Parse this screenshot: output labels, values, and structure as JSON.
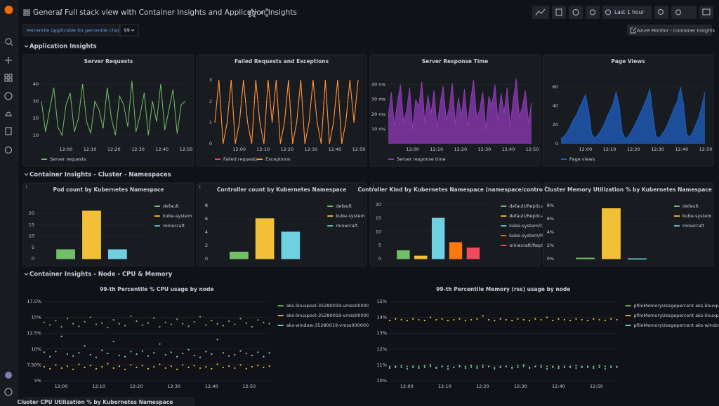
{
  "header": {
    "folder": "General",
    "title": "Full stack view with Container Insights and Application Insights",
    "time_range": "Last 1 hour"
  },
  "variables": {
    "label": "Percentile (applicable for percentile charts)",
    "value": "99",
    "link": "Azure Monitor - Container Insights"
  },
  "rows": [
    {
      "title": "Application Insights",
      "legend": "bottom",
      "panels": [
        {
          "title": "Server Requests",
          "type": "line",
          "ylim": [
            5,
            45
          ],
          "yticks": [
            10,
            20,
            30,
            40
          ],
          "xticks": [
            "12:00",
            "12:10",
            "12:20",
            "12:30",
            "12:40",
            "12:50"
          ],
          "series": [
            {
              "name": "Server requests",
              "color": "#73bf69",
              "values": [
                30,
                12,
                25,
                38,
                15,
                10,
                28,
                35,
                12,
                20,
                40,
                18,
                11,
                30,
                25,
                14,
                38,
                20,
                10,
                33,
                28,
                15,
                42,
                12,
                22,
                35,
                10,
                30,
                18,
                40,
                13,
                25,
                37,
                11,
                28,
                30
              ]
            }
          ]
        },
        {
          "title": "Failed Requests and Exceptions",
          "type": "line",
          "ylim": [
            0,
            3.2
          ],
          "yticks": [
            0,
            1,
            2,
            3
          ],
          "xticks": [
            "12:00",
            "12:10",
            "12:20",
            "12:30",
            "12:40",
            "12:50"
          ],
          "series": [
            {
              "name": "Failed requests",
              "color": "#f2495c",
              "values": [
                1,
                3,
                0,
                1,
                3,
                0,
                1,
                3,
                1,
                0,
                3,
                1,
                0,
                3,
                1,
                3,
                0,
                1,
                3,
                0,
                1,
                3,
                0,
                1,
                3,
                1,
                0,
                3,
                0,
                1,
                3,
                0,
                1,
                3,
                1,
                3
              ]
            },
            {
              "name": "Exceptions",
              "color": "#ff9830",
              "values": [
                1,
                3,
                0,
                1,
                3,
                0,
                1,
                3,
                1,
                0,
                3,
                1,
                0,
                3,
                1,
                3,
                0,
                1,
                3,
                0,
                1,
                3,
                0,
                1,
                3,
                1,
                0,
                3,
                0,
                1,
                3,
                0,
                1,
                3,
                1,
                3
              ]
            }
          ]
        },
        {
          "title": "Server Response Time",
          "type": "area",
          "ylim": [
            0,
            46
          ],
          "yticks": [
            {
              "value": 10,
              "label": "10 ms"
            },
            {
              "value": 20,
              "label": "20 ms"
            },
            {
              "value": 30,
              "label": "30 ms"
            },
            {
              "value": 40,
              "label": "40 ms"
            }
          ],
          "xticks": [
            "12:00",
            "12:10",
            "12:20",
            "12:30",
            "12:40",
            "12:50"
          ],
          "series": [
            {
              "name": "Server response time",
              "color": "#8f3bb8",
              "values": [
                18,
                35,
                12,
                28,
                40,
                15,
                22,
                38,
                10,
                30,
                25,
                42,
                14,
                33,
                20,
                36,
                11,
                27,
                39,
                16,
                24,
                41,
                13,
                31,
                19,
                37,
                12,
                29,
                43,
                17,
                23,
                35,
                10,
                32,
                26,
                40,
                15,
                34,
                21,
                38,
                12,
                30,
                44,
                18,
                25,
                36,
                14,
                28
              ]
            }
          ]
        },
        {
          "title": "Page Views",
          "type": "area",
          "ylim": [
            0,
            72
          ],
          "yticks": [
            0,
            20,
            40,
            60
          ],
          "xticks": [
            "12:00",
            "12:10",
            "12:20",
            "12:30",
            "12:40",
            "12:50"
          ],
          "series": [
            {
              "name": "Page views",
              "color": "#1f60c4",
              "values": [
                5,
                8,
                12,
                18,
                25,
                30,
                38,
                45,
                52,
                35,
                10,
                6,
                9,
                14,
                20,
                28,
                35,
                42,
                55,
                40,
                12,
                5,
                8,
                13,
                19,
                26,
                33,
                40,
                48,
                58,
                30,
                8,
                6,
                10,
                15,
                22,
                30,
                38,
                45,
                60,
                42,
                10,
                7,
                12,
                20,
                28,
                40,
                55
              ]
            }
          ]
        }
      ]
    },
    {
      "title": "Container Insights - Cluster - Namespaces",
      "legend": "right",
      "panels": [
        {
          "title": "Pod count by Kubernetes Namespace",
          "type": "bar",
          "ylim": [
            0,
            25
          ],
          "yticks": [
            0,
            5,
            10,
            15,
            20
          ],
          "categories": [
            "default",
            "kube-system",
            "minecraft"
          ],
          "values": [
            4,
            21,
            4
          ],
          "colors": [
            "#73bf69",
            "#f2c037",
            "#6ed0e0"
          ]
        },
        {
          "title": "Controller count by Kubernetes Namespace",
          "type": "bar",
          "ylim": [
            0,
            8.5
          ],
          "yticks": [
            0,
            2,
            4,
            6,
            8
          ],
          "categories": [
            "default",
            "kube-system",
            "minecraft"
          ],
          "values": [
            1,
            6,
            4
          ],
          "colors": [
            "#73bf69",
            "#f2c037",
            "#6ed0e0"
          ]
        },
        {
          "title": "Controller Kind by Kubernetes Namespace (namespace/controll...",
          "type": "bar",
          "ylim": [
            0,
            21
          ],
          "yticks": [
            0,
            5,
            10,
            15,
            20
          ],
          "categories": [
            "default/ReplicaSet",
            "default/ReplicationController",
            "kube-system/DaemonSet",
            "kube-system/ReplicaSet",
            "minecraft/ReplicaSet"
          ],
          "values": [
            3,
            1,
            15,
            6,
            4
          ],
          "colors": [
            "#73bf69",
            "#f2c037",
            "#6ed0e0",
            "#ff780a",
            "#f2495c"
          ]
        },
        {
          "title": "Cluster Memory Utilization % by Kubernetes Namespace",
          "type": "bar",
          "ylim": [
            0,
            8.5
          ],
          "yticks": [
            {
              "value": 0,
              "label": "0%"
            },
            {
              "value": 2,
              "label": "2%"
            },
            {
              "value": 4,
              "label": "4%"
            },
            {
              "value": 6,
              "label": "6%"
            },
            {
              "value": 8,
              "label": "8%"
            }
          ],
          "categories": [
            "default",
            "kube-system",
            "minecraft"
          ],
          "values": [
            0.1,
            7.5,
            0
          ],
          "colors": [
            "#73bf69",
            "#f2c037",
            "#6ed0e0"
          ]
        }
      ]
    },
    {
      "title": "Container Insights - Node - CPU & Memory",
      "legend": "right",
      "panels": [
        {
          "title": "99-th Percentile % CPU usage by node",
          "type": "scatter",
          "ylim": [
            5,
            17.5
          ],
          "yticks": [
            {
              "value": 5,
              "label": "5%"
            },
            {
              "value": 7.5,
              "label": "7.50%"
            },
            {
              "value": 10,
              "label": "10%"
            },
            {
              "value": 12.5,
              "label": "12.5%"
            },
            {
              "value": 15,
              "label": "15%"
            },
            {
              "value": 17.5,
              "label": "17.5%"
            }
          ],
          "xticks": [
            "12:00",
            "12:10",
            "12:20",
            "12:30",
            "12:40",
            "12:50"
          ],
          "series": [
            {
              "name": "aks-linuxpool-35280019-vmss000000",
              "color": "#73bf69",
              "values": [
                14.2,
                13.8,
                14.5,
                13.5,
                14.8,
                14.0,
                13.6,
                14.3,
                15.0,
                13.9,
                14.1,
                13.4,
                14.6,
                14.0,
                13.7,
                15.2,
                14.4,
                13.8,
                14.1,
                14.9,
                13.5,
                14.2,
                13.9,
                14.7,
                14.0,
                13.6,
                14.3,
                15.1,
                13.8,
                14.5,
                14.0,
                13.7,
                14.4,
                13.9,
                14.8,
                14.1,
                13.5,
                14.6,
                14.2,
                14.0
              ]
            },
            {
              "name": "aks-linuxpool-35280019-vmss000001",
              "color": "#f2c037",
              "values": [
                7.2,
                6.9,
                7.5,
                7.0,
                7.3,
                6.8,
                7.6,
                7.1,
                7.4,
                6.9,
                7.2,
                7.7,
                7.0,
                7.3,
                6.8,
                7.5,
                7.1,
                7.4,
                6.9,
                7.2,
                7.6,
                7.0,
                7.3,
                6.8,
                7.5,
                7.1,
                7.4,
                7.0,
                7.2,
                6.9,
                7.6,
                7.1,
                7.3,
                7.0,
                7.5,
                6.9,
                7.2,
                7.4,
                7.1,
                7.3
              ]
            },
            {
              "name": "aks-window-35280019-vmss000000",
              "color": "#6ed0e0",
              "values": [
                9.5,
                8.8,
                9.6,
                12.0,
                9.2,
                8.9,
                9.4,
                10.5,
                9.1,
                8.7,
                9.8,
                9.3,
                11.2,
                9.0,
                8.8,
                9.6,
                9.2,
                9.7,
                8.9,
                9.4,
                10.8,
                9.1,
                9.5,
                8.8,
                9.3,
                9.9,
                9.0,
                8.7,
                9.6,
                9.2,
                11.5,
                9.4,
                8.9,
                9.1,
                9.7,
                9.3,
                9.0,
                9.5,
                8.8,
                9.4
              ]
            }
          ]
        },
        {
          "title": "99-th Percentile Memory (rss) usage by node",
          "type": "scatter",
          "ylim": [
            10,
            15
          ],
          "yticks": [
            {
              "value": 10,
              "label": "10%"
            },
            {
              "value": 11,
              "label": "11%"
            },
            {
              "value": 12,
              "label": "12%"
            },
            {
              "value": 13,
              "label": "13%"
            },
            {
              "value": 14,
              "label": "14%"
            },
            {
              "value": 15,
              "label": "15%"
            }
          ],
          "xticks": [
            "12:00",
            "12:10",
            "12:20",
            "12:30",
            "12:40",
            "12:50"
          ],
          "series": [
            {
              "name": "pfileMemoryUsagepercent aks-linuxpool-35280019-vmss000000",
              "color": "#73bf69",
              "values": [
                10.9,
                10.85,
                10.95,
                10.9,
                10.85,
                10.9,
                10.95,
                10.9,
                10.85,
                10.9,
                10.9,
                10.85,
                10.95,
                10.9,
                10.85,
                10.9,
                10.95,
                10.9,
                10.85,
                10.9,
                10.9,
                10.85,
                10.95,
                10.9,
                10.85,
                10.9,
                10.95,
                10.9,
                10.85,
                10.9,
                10.9,
                10.85,
                10.95,
                10.9,
                10.85,
                10.9,
                10.95,
                10.9,
                10.85,
                10.9
              ]
            },
            {
              "name": "pfileMemoryUsagepercent aks-linuxpool-35280019-vmss000001",
              "color": "#f2c037",
              "values": [
                13.8,
                13.9,
                13.85,
                13.8,
                13.9,
                13.85,
                13.8,
                14.0,
                13.85,
                13.9,
                13.8,
                13.85,
                13.9,
                13.8,
                13.85,
                13.9,
                14.1,
                13.85,
                13.8,
                13.9,
                13.85,
                13.8,
                13.9,
                13.85,
                13.8,
                13.9,
                13.85,
                14.0,
                13.8,
                13.9,
                13.85,
                13.8,
                13.9,
                13.85,
                13.8,
                13.9,
                13.85,
                13.8,
                13.9,
                13.85
              ]
            },
            {
              "name": "pfileMemoryUsagepercent aks-window-35280019-vmss000000",
              "color": "#6ed0e0",
              "values": [
                10.8,
                10.9,
                10.85,
                10.75,
                10.9,
                10.8,
                10.85,
                11.0,
                10.8,
                10.9,
                10.75,
                10.85,
                10.9,
                10.8,
                10.95,
                10.8,
                10.85,
                10.9,
                10.75,
                10.85,
                10.9,
                10.8,
                10.85,
                11.0,
                10.8,
                10.9,
                10.85,
                10.75,
                10.9,
                10.8,
                10.85,
                10.9,
                10.8,
                10.85,
                10.9,
                10.8,
                10.85,
                10.75,
                10.9,
                10.85
              ]
            }
          ]
        },
        {
          "title": "Cluster CPU Utilization % by Kubernetes Namespace"
        }
      ]
    }
  ]
}
